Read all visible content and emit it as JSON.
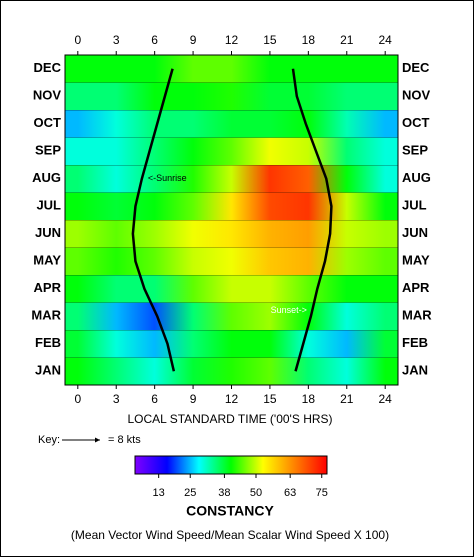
{
  "chart_data": {
    "type": "heatmap",
    "x_label": "LOCAL STANDARD TIME ('00'S HRS)",
    "title": "CONSTANCY",
    "subtitle": "(Mean Vector Wind Speed/Mean Scalar Wind Speed X 100)",
    "key_label": "Key:",
    "key_value": "= 8 kts",
    "x": [
      0,
      3,
      6,
      9,
      12,
      15,
      18,
      21,
      24
    ],
    "categories": [
      "JAN",
      "FEB",
      "MAR",
      "APR",
      "MAY",
      "JUN",
      "JUL",
      "AUG",
      "SEP",
      "OCT",
      "NOV",
      "DEC"
    ],
    "z": [
      [
        40,
        35,
        30,
        38,
        42,
        45,
        35,
        30,
        40
      ],
      [
        38,
        30,
        25,
        35,
        40,
        40,
        30,
        25,
        38
      ],
      [
        35,
        25,
        20,
        35,
        45,
        48,
        40,
        30,
        35
      ],
      [
        40,
        35,
        35,
        45,
        50,
        50,
        45,
        40,
        40
      ],
      [
        45,
        42,
        45,
        50,
        52,
        58,
        60,
        48,
        45
      ],
      [
        48,
        45,
        48,
        52,
        55,
        60,
        62,
        50,
        48
      ],
      [
        40,
        38,
        40,
        45,
        55,
        70,
        72,
        50,
        40
      ],
      [
        35,
        30,
        35,
        42,
        50,
        72,
        68,
        40,
        30
      ],
      [
        30,
        30,
        35,
        40,
        45,
        52,
        50,
        35,
        30
      ],
      [
        25,
        30,
        35,
        35,
        38,
        38,
        40,
        32,
        25
      ],
      [
        35,
        35,
        40,
        40,
        42,
        38,
        38,
        35,
        35
      ],
      [
        40,
        40,
        40,
        45,
        45,
        40,
        40,
        40,
        40
      ]
    ],
    "series": [
      {
        "name": "Sunrise",
        "label": "<-Sunrise",
        "color": "#000000",
        "values": [
          7.5,
          7.0,
          6.2,
          5.2,
          4.5,
          4.3,
          4.5,
          5.0,
          5.6,
          6.2,
          6.8,
          7.4
        ]
      },
      {
        "name": "Sunset",
        "label": "Sunset->",
        "color": "#000000",
        "values": [
          17.0,
          17.6,
          18.2,
          18.7,
          19.3,
          19.7,
          19.8,
          19.4,
          18.6,
          17.8,
          17.1,
          16.8
        ]
      }
    ],
    "xlim": [
      -1,
      25
    ],
    "xticks": [
      0,
      3,
      6,
      9,
      12,
      15,
      18,
      21,
      24
    ],
    "clim": [
      4,
      77
    ],
    "cticks": [
      13,
      25,
      38,
      50,
      63,
      75
    ],
    "colormap": [
      "#8000ff",
      "#0000ff",
      "#00ffff",
      "#00ff00",
      "#ffff00",
      "#ff8000",
      "#ff0000"
    ]
  }
}
